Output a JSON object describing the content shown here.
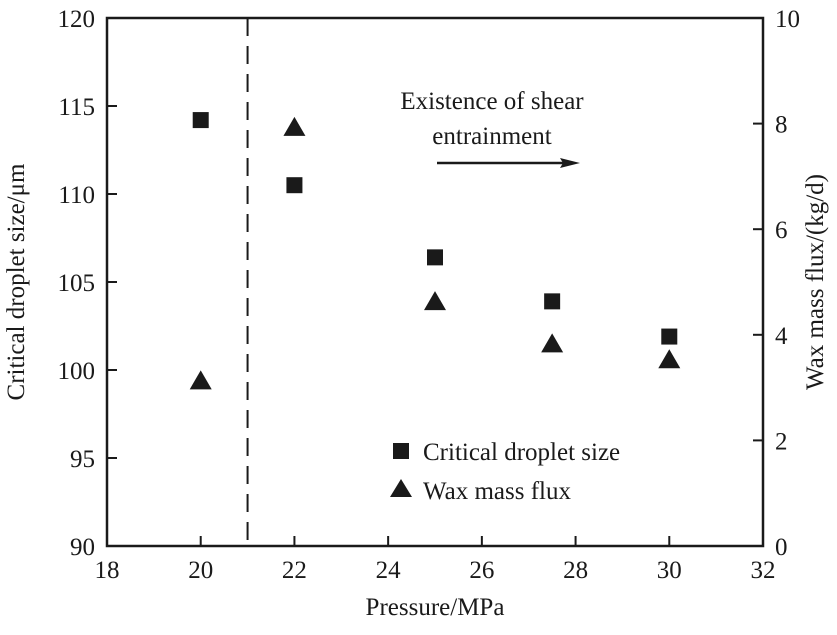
{
  "chart_data": {
    "type": "scatter",
    "title": "",
    "xlabel": "Pressure/MPa",
    "ylabel": "Critical droplet size/μm",
    "y2label": "Wax mass flux/(kg/d)",
    "xlim": [
      18,
      32
    ],
    "ylim": [
      90,
      120
    ],
    "y2lim": [
      0,
      10
    ],
    "xticks": [
      "18",
      "20",
      "22",
      "24",
      "26",
      "28",
      "30",
      "32"
    ],
    "yticks": [
      "90",
      "95",
      "100",
      "105",
      "110",
      "115",
      "120"
    ],
    "y2ticks": [
      "0",
      "2",
      "4",
      "6",
      "8",
      "10"
    ],
    "grid": false,
    "legend_position": "bottom-right",
    "series": [
      {
        "name": "Critical droplet size",
        "axis": "left",
        "marker": "square",
        "x": [
          20,
          22,
          25,
          27.5,
          30
        ],
        "y": [
          114.2,
          110.5,
          106.4,
          103.9,
          101.9
        ]
      },
      {
        "name": "Wax mass flux",
        "axis": "right",
        "marker": "triangle",
        "x": [
          20,
          22,
          25,
          27.5,
          30
        ],
        "y": [
          3.1,
          7.9,
          4.6,
          3.8,
          3.5
        ]
      }
    ],
    "annotations": {
      "divider_x": 21,
      "text_line1": "Existence of  shear",
      "text_line2": "entrainment"
    },
    "colors": {
      "markers": "#1a1a1a",
      "axes": "#1a1a1a"
    }
  }
}
